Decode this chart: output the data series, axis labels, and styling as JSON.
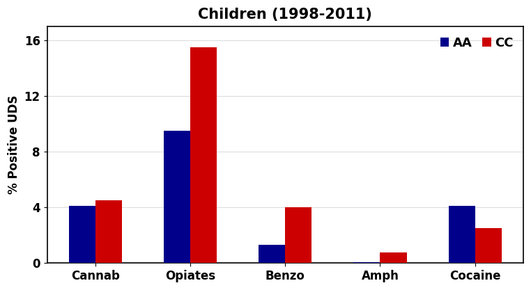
{
  "title": "Children (1998-2011)",
  "ylabel": "% Positive UDS",
  "categories": [
    "Cannab",
    "Opiates",
    "Benzo",
    "Amph",
    "Cocaine"
  ],
  "AA_values": [
    4.1,
    9.5,
    1.3,
    0.08,
    4.1
  ],
  "CC_values": [
    4.5,
    15.5,
    4.0,
    0.75,
    2.5
  ],
  "AA_color": "#00008B",
  "CC_color": "#CC0000",
  "ylim": [
    0,
    17
  ],
  "yticks": [
    0,
    4,
    8,
    12,
    16
  ],
  "bar_width": 0.28,
  "legend_labels": [
    "AA",
    "CC"
  ],
  "title_fontsize": 15,
  "label_fontsize": 12,
  "tick_fontsize": 12,
  "legend_fontsize": 13,
  "bg_color": "#ffffff"
}
